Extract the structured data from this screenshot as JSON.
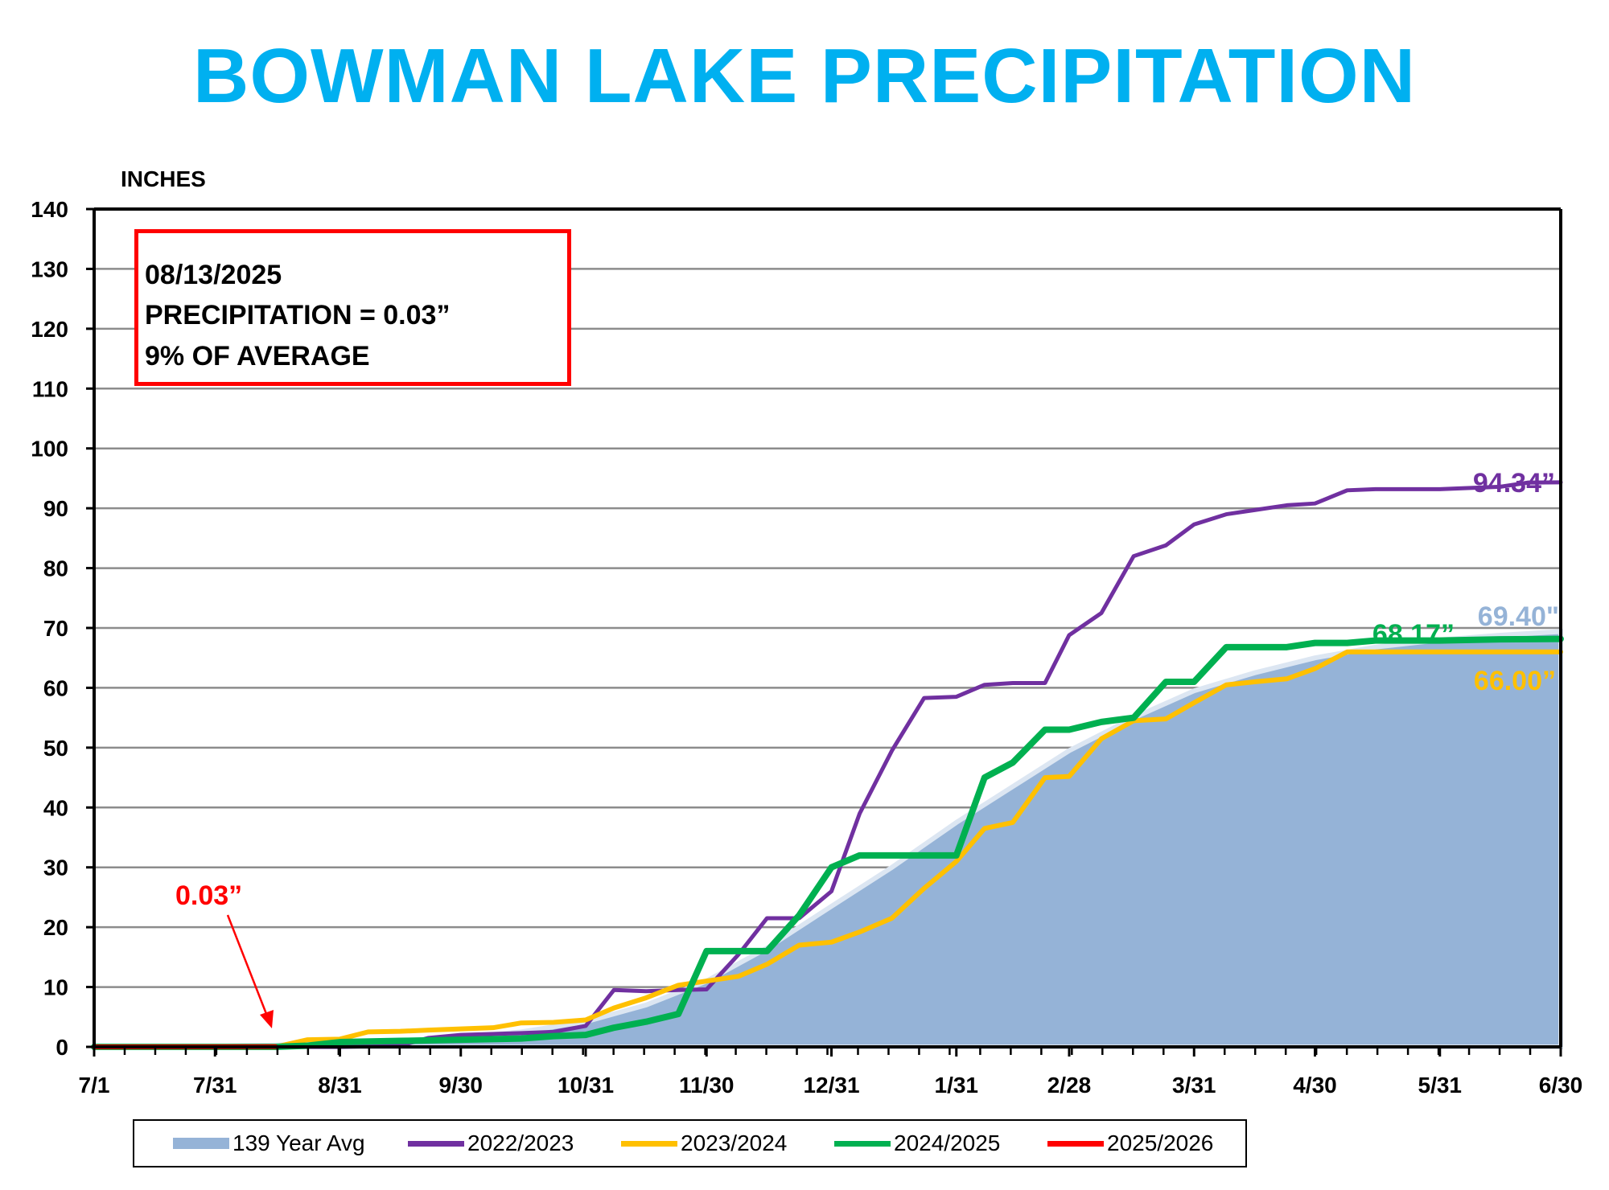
{
  "title": "BOWMAN LAKE PRECIPITATION",
  "y_unit_label": "INCHES",
  "info_box": {
    "date": "08/13/2025",
    "precipitation": "PRECIPITATION = 0.03”",
    "percent": "9% OF AVERAGE"
  },
  "annotation": {
    "text": "0.03”",
    "color": "#ff0000"
  },
  "chart_data": {
    "type": "line",
    "title": "BOWMAN LAKE PRECIPITATION",
    "xlabel": "",
    "ylabel": "INCHES",
    "xlim": [
      0,
      364
    ],
    "ylim": [
      0,
      140
    ],
    "yticks": [
      0,
      10,
      20,
      30,
      40,
      50,
      60,
      70,
      80,
      90,
      100,
      110,
      120,
      130,
      140
    ],
    "xticks": [
      {
        "day": 0,
        "label": "7/1"
      },
      {
        "day": 30,
        "label": "7/31"
      },
      {
        "day": 61,
        "label": "8/31"
      },
      {
        "day": 91,
        "label": "9/30"
      },
      {
        "day": 122,
        "label": "10/31"
      },
      {
        "day": 152,
        "label": "11/30"
      },
      {
        "day": 183,
        "label": "12/31"
      },
      {
        "day": 214,
        "label": "1/31"
      },
      {
        "day": 242,
        "label": "2/28"
      },
      {
        "day": 273,
        "label": "3/31"
      },
      {
        "day": 303,
        "label": "4/30"
      },
      {
        "day": 334,
        "label": "5/31"
      },
      {
        "day": 364,
        "label": "6/30"
      }
    ],
    "grid": true,
    "legend_position": "bottom",
    "series": [
      {
        "name": "139 Year Avg",
        "type": "area",
        "color": "#95b3d7",
        "end_label": "69.40\"",
        "x": [
          0,
          30,
          45,
          61,
          76,
          91,
          106,
          122,
          137,
          152,
          167,
          183,
          198,
          214,
          228,
          242,
          258,
          273,
          288,
          303,
          318,
          334,
          349,
          364
        ],
        "y": [
          0,
          0.1,
          0.3,
          0.6,
          1.0,
          1.6,
          2.5,
          4.2,
          7.0,
          11.0,
          16.5,
          23.5,
          30.0,
          37.5,
          43.5,
          49.5,
          55.0,
          59.5,
          62.5,
          65.0,
          66.8,
          68.0,
          68.8,
          69.4
        ]
      },
      {
        "name": "2022/2023",
        "color": "#7030a0",
        "end_label": "94.34”",
        "x": [
          0,
          61,
          76,
          83,
          91,
          106,
          114,
          122,
          129,
          137,
          145,
          152,
          160,
          167,
          175,
          183,
          190,
          198,
          206,
          214,
          221,
          228,
          236,
          242,
          250,
          258,
          266,
          273,
          281,
          288,
          296,
          303,
          311,
          318,
          334,
          349,
          356,
          364
        ],
        "y": [
          0,
          0,
          0.2,
          1.5,
          2.0,
          2.3,
          2.5,
          3.5,
          9.5,
          9.3,
          9.5,
          9.6,
          15.5,
          21.5,
          21.5,
          26.0,
          39.0,
          49.5,
          58.3,
          58.5,
          60.5,
          60.8,
          60.8,
          68.8,
          72.5,
          82.0,
          83.8,
          87.3,
          89.0,
          89.7,
          90.5,
          90.8,
          93.0,
          93.2,
          93.2,
          93.6,
          94.3,
          94.34
        ]
      },
      {
        "name": "2023/2024",
        "color": "#ffc000",
        "end_label": "66.00”",
        "x": [
          0,
          45,
          53,
          61,
          68,
          76,
          83,
          91,
          99,
          106,
          114,
          122,
          129,
          137,
          145,
          152,
          160,
          167,
          175,
          183,
          190,
          198,
          206,
          214,
          221,
          228,
          236,
          242,
          250,
          258,
          266,
          273,
          281,
          288,
          296,
          303,
          311,
          318,
          334,
          349,
          364
        ],
        "y": [
          0,
          0,
          1.2,
          1.3,
          2.5,
          2.6,
          2.8,
          3.0,
          3.2,
          4.0,
          4.1,
          4.5,
          6.5,
          8.2,
          10.3,
          11.0,
          11.8,
          13.8,
          17.0,
          17.5,
          19.2,
          21.5,
          26.5,
          31.0,
          36.5,
          37.5,
          45.0,
          45.2,
          51.5,
          54.5,
          54.8,
          57.5,
          60.5,
          61.0,
          61.5,
          63.2,
          66.0,
          66.0,
          66.0,
          66.0,
          66.0
        ]
      },
      {
        "name": "2024/2025",
        "color": "#00b050",
        "end_label": "68.17”",
        "x": [
          0,
          45,
          53,
          61,
          76,
          91,
          106,
          114,
          122,
          129,
          137,
          145,
          152,
          160,
          167,
          175,
          183,
          190,
          198,
          206,
          214,
          221,
          228,
          236,
          242,
          250,
          258,
          266,
          273,
          281,
          288,
          296,
          303,
          311,
          318,
          334,
          349,
          364
        ],
        "y": [
          0,
          0,
          0.2,
          0.8,
          1.0,
          1.2,
          1.4,
          1.8,
          2.0,
          3.2,
          4.2,
          5.5,
          16.0,
          16.0,
          16.0,
          22.0,
          30.0,
          32.0,
          32.0,
          32.0,
          32.0,
          45.0,
          47.5,
          53.0,
          53.0,
          54.3,
          55.0,
          61.0,
          61.0,
          66.8,
          66.8,
          66.8,
          67.5,
          67.5,
          67.9,
          67.9,
          68.1,
          68.17
        ]
      },
      {
        "name": "2025/2026",
        "color": "#ff0000",
        "x": [
          0,
          30,
          45
        ],
        "y": [
          0,
          0.01,
          0.03
        ]
      }
    ]
  }
}
